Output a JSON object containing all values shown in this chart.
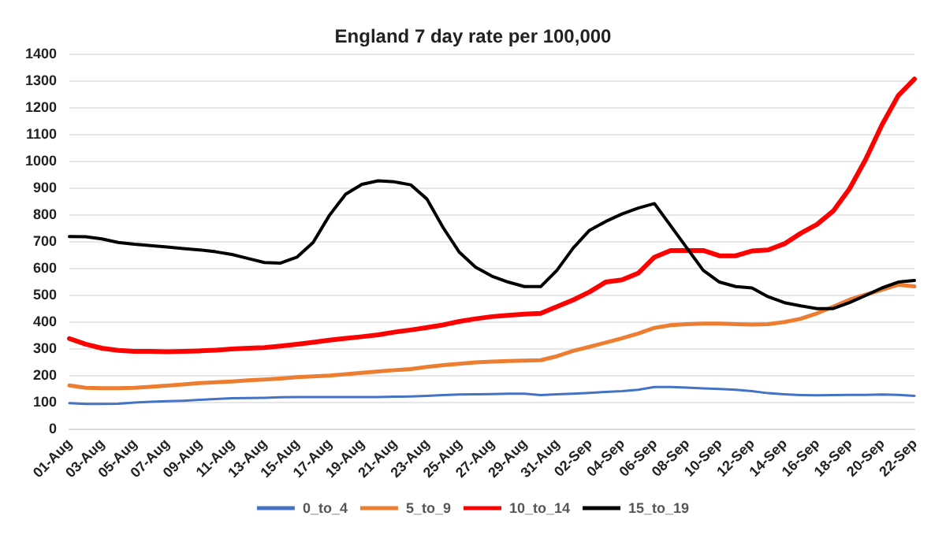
{
  "chart_data": {
    "type": "line",
    "title": "England 7 day rate per 100,000",
    "categories": [
      "01-Aug",
      null,
      "03-Aug",
      null,
      "05-Aug",
      null,
      "07-Aug",
      null,
      "09-Aug",
      null,
      "11-Aug",
      null,
      "13-Aug",
      null,
      "15-Aug",
      null,
      "17-Aug",
      null,
      "19-Aug",
      null,
      "21-Aug",
      null,
      "23-Aug",
      null,
      "25-Aug",
      null,
      "27-Aug",
      null,
      "29-Aug",
      null,
      "31-Aug",
      null,
      "02-Sep",
      null,
      "04-Sep",
      null,
      "06-Sep",
      null,
      "08-Sep",
      null,
      "10-Sep",
      null,
      "12-Sep",
      null,
      "14-Sep",
      null,
      "16-Sep",
      null,
      "18-Sep",
      null,
      "20-Sep",
      null,
      "22-Sep"
    ],
    "series": [
      {
        "name": "0_to_4",
        "color": "#4472c4",
        "values": [
          95,
          92,
          92,
          93,
          97,
          100,
          102,
          104,
          107,
          110,
          113,
          114,
          115,
          117,
          118,
          118,
          118,
          118,
          118,
          118,
          119,
          120,
          122,
          125,
          127,
          128,
          129,
          130,
          130,
          125,
          128,
          130,
          133,
          137,
          140,
          145,
          155,
          155,
          153,
          150,
          148,
          145,
          140,
          132,
          128,
          125,
          124,
          125,
          126,
          126,
          127,
          126,
          122
        ]
      },
      {
        "name": "5_to_9",
        "color": "#ed7d31",
        "values": [
          161,
          152,
          151,
          151,
          152,
          156,
          160,
          165,
          170,
          173,
          176,
          180,
          183,
          187,
          192,
          195,
          198,
          203,
          208,
          213,
          218,
          222,
          230,
          237,
          242,
          247,
          250,
          252,
          254,
          255,
          270,
          290,
          305,
          321,
          337,
          355,
          376,
          386,
          390,
          392,
          392,
          390,
          388,
          390,
          398,
          410,
          430,
          455,
          481,
          500,
          518,
          537,
          531
        ]
      },
      {
        "name": "10_to_14",
        "color": "#ff0000",
        "values": [
          336,
          315,
          300,
          292,
          288,
          288,
          287,
          288,
          290,
          293,
          297,
          300,
          302,
          308,
          315,
          322,
          330,
          337,
          343,
          350,
          360,
          368,
          377,
          387,
          400,
          410,
          418,
          423,
          427,
          430,
          455,
          480,
          510,
          547,
          555,
          580,
          640,
          665,
          665,
          665,
          645,
          645,
          663,
          667,
          690,
          729,
          762,
          812,
          895,
          1005,
          1134,
          1243,
          1305
        ]
      },
      {
        "name": "15_to_19",
        "color": "#000000",
        "values": [
          717,
          716,
          708,
          695,
          688,
          683,
          678,
          672,
          667,
          660,
          650,
          635,
          620,
          618,
          640,
          695,
          796,
          875,
          912,
          925,
          921,
          910,
          857,
          750,
          658,
          602,
          569,
          547,
          530,
          530,
          591,
          674,
          740,
          773,
          801,
          823,
          840,
          757,
          674,
          591,
          547,
          530,
          525,
          492,
          470,
          458,
          448,
          448,
          470,
          497,
          525,
          547,
          553
        ]
      }
    ],
    "ylim": [
      0,
      1400
    ],
    "yticks": [
      0,
      100,
      200,
      300,
      400,
      500,
      600,
      700,
      800,
      900,
      1000,
      1100,
      1200,
      1300,
      1400
    ],
    "grid": "y",
    "legend": "bottom",
    "marker": "none",
    "line_style": "solid"
  }
}
